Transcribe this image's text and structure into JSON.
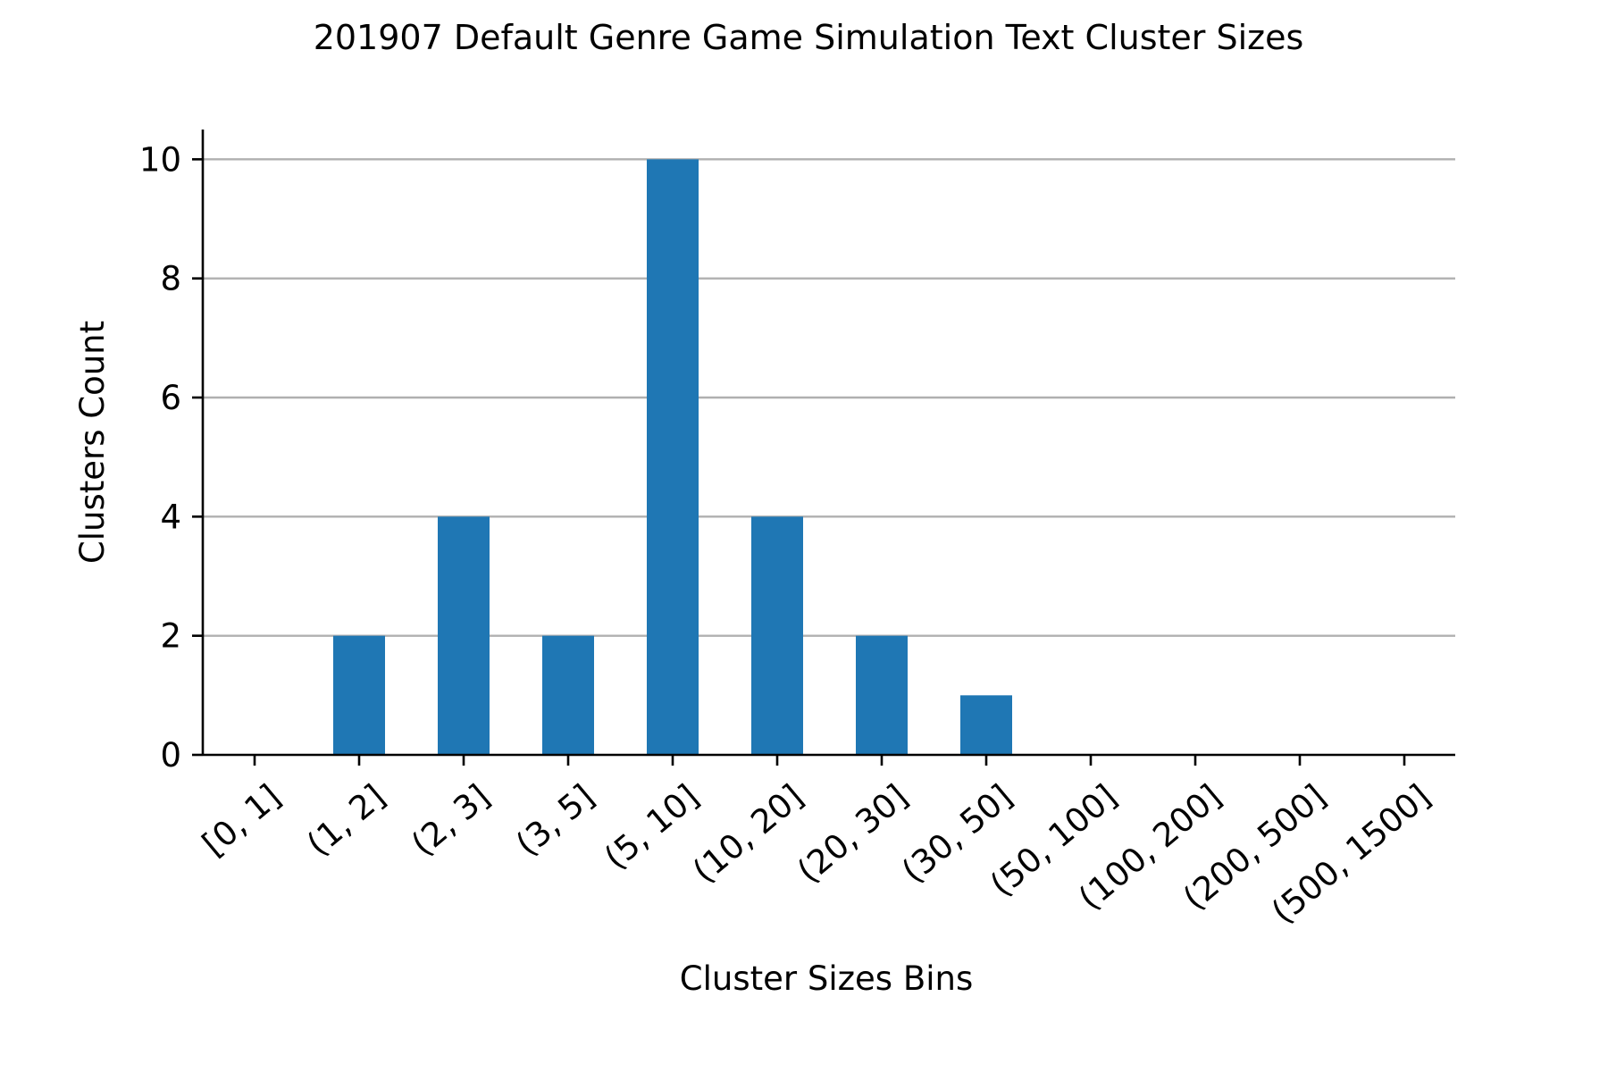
{
  "chart_data": {
    "type": "bar",
    "title": "201907 Default Genre Game Simulation Text Cluster Sizes",
    "xlabel": "Cluster Sizes Bins",
    "ylabel": "Clusters Count",
    "categories": [
      "[0, 1]",
      "(1, 2]",
      "(2, 3]",
      "(3, 5]",
      "(5, 10]",
      "(10, 20]",
      "(20, 30]",
      "(30, 50]",
      "(50, 100]",
      "(100, 200]",
      "(200, 500]",
      "(500, 1500]"
    ],
    "values": [
      0,
      2,
      4,
      2,
      10,
      4,
      2,
      1,
      0,
      0,
      0,
      0
    ],
    "ylim": [
      0,
      10.5
    ],
    "yticks": [
      0,
      2,
      4,
      6,
      8,
      10
    ],
    "grid": "horizontal",
    "bar_color": "#1f77b4",
    "legend": "none"
  }
}
